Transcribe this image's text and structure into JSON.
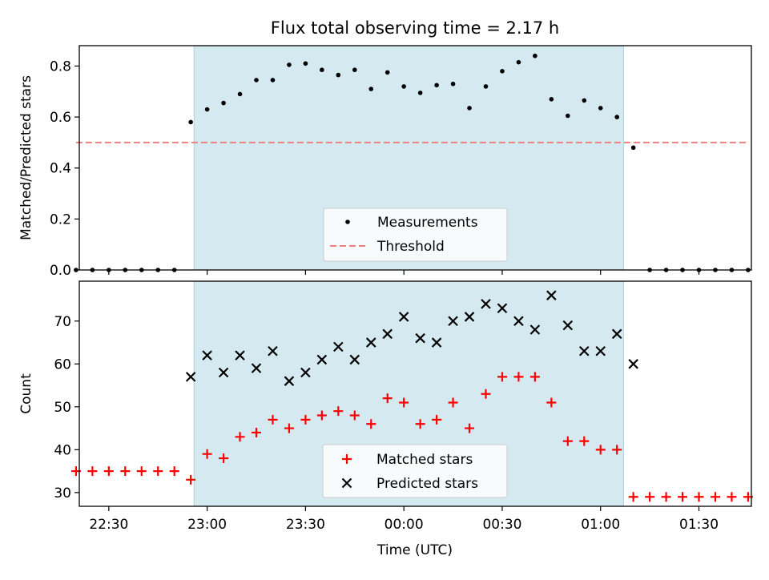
{
  "figure": {
    "title": "Flux total observing time = 2.17 h",
    "xlabel": "Time (UTC)",
    "x_tick_labels": [
      "22:30",
      "23:00",
      "23:30",
      "00:00",
      "00:30",
      "01:00",
      "01:30"
    ]
  },
  "colors": {
    "shade": "#d4eaf0",
    "shade_edge": "#a9d3df",
    "measurement": "#000000",
    "threshold": "#f08080",
    "matched": "#ff0000",
    "predicted": "#000000"
  },
  "chart_data": [
    {
      "type": "scatter",
      "ylabel": "Matched/Predicted stars",
      "xlim": [
        "22:21",
        "01:46"
      ],
      "ylim": [
        0,
        0.88
      ],
      "y_ticks": [
        "0.0",
        "0.2",
        "0.4",
        "0.6",
        "0.8"
      ],
      "shaded_interval": [
        "22:56",
        "01:07"
      ],
      "threshold": {
        "name": "Threshold",
        "value": 0.5,
        "x_range": [
          "22:20",
          "01:45"
        ]
      },
      "legend": {
        "placement": "lower center"
      },
      "series": [
        {
          "name": "Measurements",
          "marker": "dot",
          "x": [
            "22:20",
            "22:25",
            "22:30",
            "22:35",
            "22:40",
            "22:45",
            "22:50",
            "22:55",
            "23:00",
            "23:05",
            "23:10",
            "23:15",
            "23:20",
            "23:25",
            "23:30",
            "23:35",
            "23:40",
            "23:45",
            "23:50",
            "23:55",
            "00:00",
            "00:05",
            "00:10",
            "00:15",
            "00:20",
            "00:25",
            "00:30",
            "00:35",
            "00:40",
            "00:45",
            "00:50",
            "00:55",
            "01:00",
            "01:05",
            "01:10",
            "01:15",
            "01:20",
            "01:25",
            "01:30",
            "01:35",
            "01:40",
            "01:45"
          ],
          "y": [
            0,
            0,
            0,
            0,
            0,
            0,
            0,
            0.58,
            0.63,
            0.655,
            0.69,
            0.745,
            0.745,
            0.805,
            0.81,
            0.785,
            0.765,
            0.785,
            0.71,
            0.775,
            0.72,
            0.695,
            0.725,
            0.73,
            0.635,
            0.72,
            0.78,
            0.815,
            0.84,
            0.67,
            0.605,
            0.665,
            0.635,
            0.6,
            0.48,
            0,
            0,
            0,
            0,
            0,
            0,
            0
          ]
        }
      ]
    },
    {
      "type": "scatter",
      "ylabel": "Count",
      "xlim": [
        "22:21",
        "01:46"
      ],
      "ylim": [
        26.8,
        79.3
      ],
      "y_ticks": [
        "30",
        "40",
        "50",
        "60",
        "70"
      ],
      "shaded_interval": [
        "22:56",
        "01:07"
      ],
      "legend": {
        "placement": "lower center"
      },
      "series": [
        {
          "name": "Matched stars",
          "marker": "plus",
          "x": [
            "22:20",
            "22:25",
            "22:30",
            "22:35",
            "22:40",
            "22:45",
            "22:50",
            "22:55",
            "23:00",
            "23:05",
            "23:10",
            "23:15",
            "23:20",
            "23:25",
            "23:30",
            "23:35",
            "23:40",
            "23:45",
            "23:50",
            "23:55",
            "00:00",
            "00:05",
            "00:10",
            "00:15",
            "00:20",
            "00:25",
            "00:30",
            "00:35",
            "00:40",
            "00:45",
            "00:50",
            "00:55",
            "01:00",
            "01:05",
            "01:10",
            "01:15",
            "01:20",
            "01:25",
            "01:30",
            "01:35",
            "01:40",
            "01:45"
          ],
          "y": [
            35,
            35,
            35,
            35,
            35,
            35,
            35,
            33,
            39,
            38,
            43,
            44,
            47,
            45,
            47,
            48,
            49,
            48,
            46,
            52,
            51,
            46,
            47,
            51,
            45,
            53,
            57,
            57,
            57,
            51,
            42,
            42,
            40,
            40,
            29,
            29,
            29,
            29,
            29,
            29,
            29,
            29
          ]
        },
        {
          "name": "Predicted stars",
          "marker": "x",
          "x": [
            "22:55",
            "23:00",
            "23:05",
            "23:10",
            "23:15",
            "23:20",
            "23:25",
            "23:30",
            "23:35",
            "23:40",
            "23:45",
            "23:50",
            "23:55",
            "00:00",
            "00:05",
            "00:10",
            "00:15",
            "00:20",
            "00:25",
            "00:30",
            "00:35",
            "00:40",
            "00:45",
            "00:50",
            "00:55",
            "01:00",
            "01:05",
            "01:10"
          ],
          "y": [
            57,
            62,
            58,
            62,
            59,
            63,
            56,
            58,
            61,
            64,
            61,
            65,
            67,
            71,
            66,
            65,
            70,
            71,
            74,
            73,
            70,
            68,
            76,
            69,
            63,
            63,
            67,
            60
          ]
        }
      ]
    }
  ]
}
